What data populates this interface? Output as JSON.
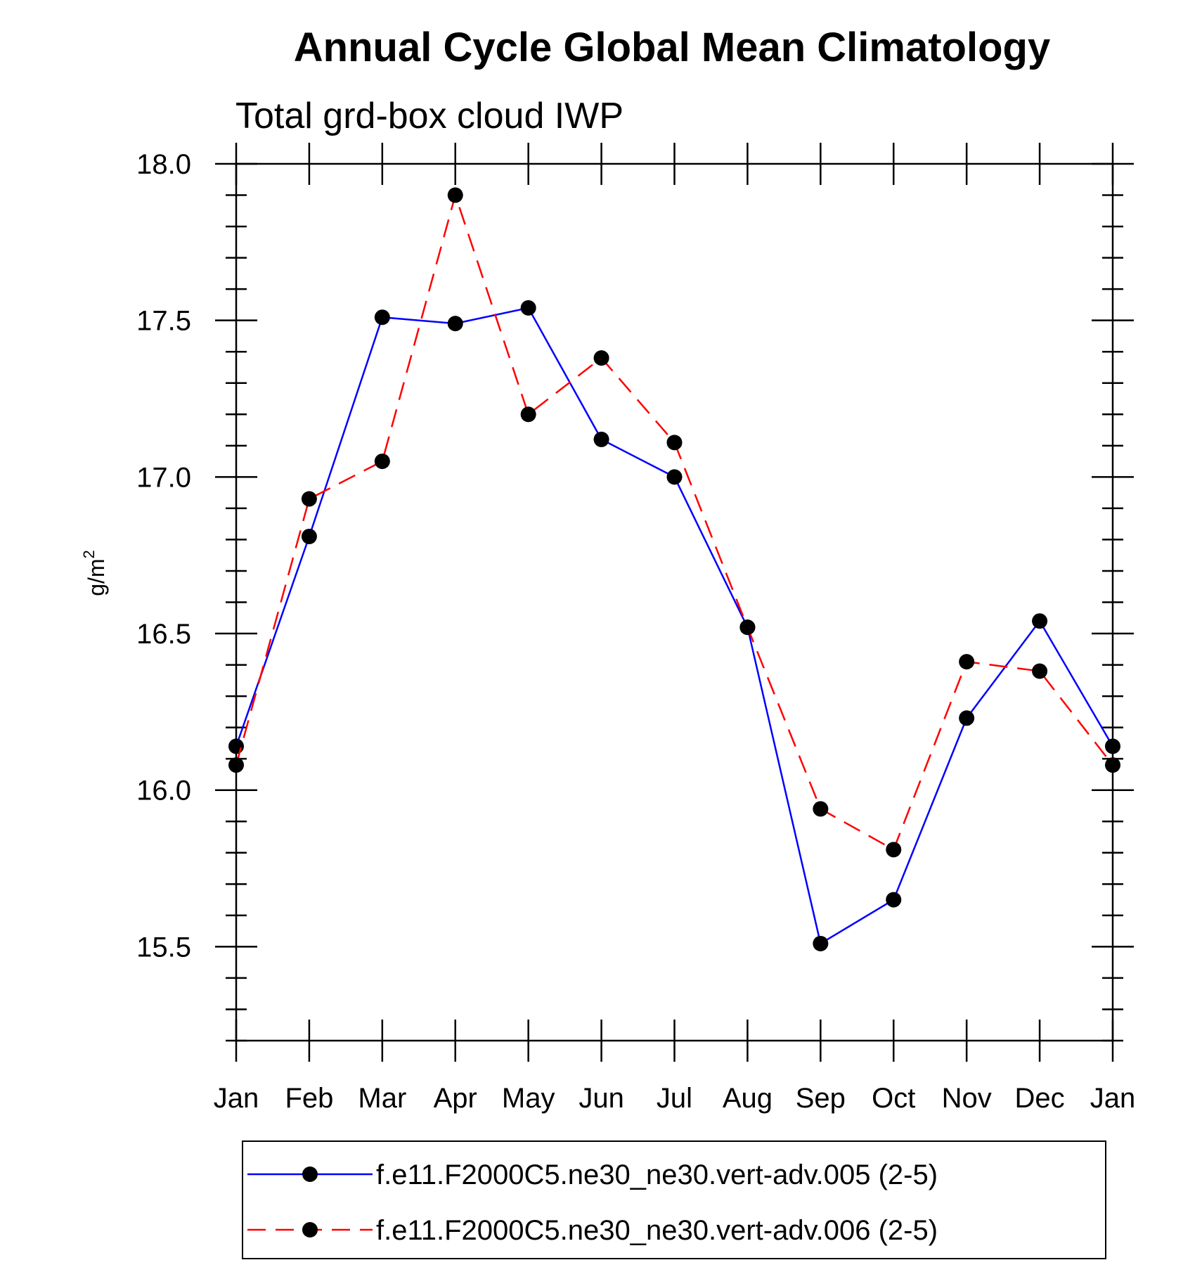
{
  "chart_data": {
    "type": "line",
    "title": "Annual Cycle Global Mean Climatology",
    "subtitle": "Total grd-box cloud IWP",
    "ylabel": "g/m",
    "ylabel_superscript": "2",
    "xlabel": "",
    "categories": [
      "Jan",
      "Feb",
      "Mar",
      "Apr",
      "May",
      "Jun",
      "Jul",
      "Aug",
      "Sep",
      "Oct",
      "Nov",
      "Dec",
      "Jan"
    ],
    "ylim": [
      15.2,
      18.0
    ],
    "yticks": [
      "18.0",
      "17.5",
      "17.0",
      "16.5",
      "16.0",
      "15.5"
    ],
    "ytick_values": [
      18.0,
      17.5,
      17.0,
      16.5,
      16.0,
      15.5
    ],
    "series": [
      {
        "name": "f.e11.F2000C5.ne30_ne30.vert-adv.005 (2-5)",
        "color": "#0000ff",
        "dash": "solid",
        "values": [
          16.14,
          16.81,
          17.51,
          17.49,
          17.54,
          17.12,
          17.0,
          16.52,
          15.51,
          15.65,
          16.23,
          16.54,
          16.14
        ]
      },
      {
        "name": "f.e11.F2000C5.ne30_ne30.vert-adv.006 (2-5)",
        "color": "#ff0000",
        "dash": "dashed",
        "values": [
          16.08,
          16.93,
          17.05,
          17.9,
          17.2,
          17.38,
          17.11,
          16.52,
          15.94,
          15.81,
          16.41,
          16.38,
          16.08
        ]
      }
    ],
    "legend": "bottom"
  }
}
